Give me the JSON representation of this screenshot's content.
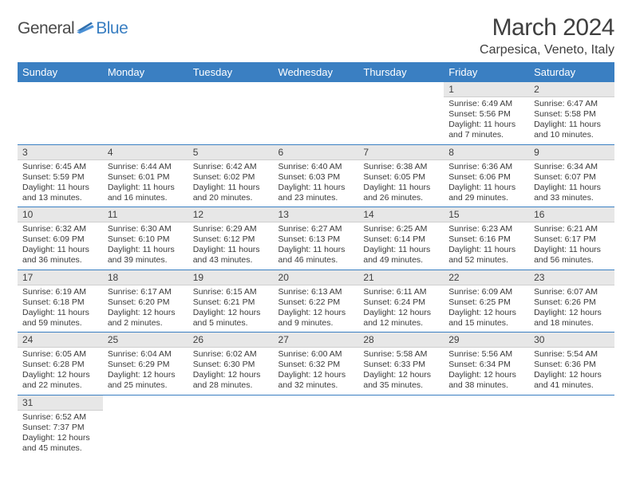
{
  "brand": {
    "general": "General",
    "blue": "Blue"
  },
  "title": "March 2024",
  "location": "Carpesica, Veneto, Italy",
  "colors": {
    "header_bg": "#3a7fc2",
    "header_fg": "#ffffff",
    "daynum_bg": "#e7e7e7",
    "row_divider": "#3a7fc2",
    "text": "#3a3a3a",
    "brand_blue": "#3a7fc2",
    "brand_gray": "#4a4a4a"
  },
  "weekdays": [
    "Sunday",
    "Monday",
    "Tuesday",
    "Wednesday",
    "Thursday",
    "Friday",
    "Saturday"
  ],
  "first_weekday_index": 5,
  "days": [
    {
      "n": 1,
      "sunrise": "6:49 AM",
      "sunset": "5:56 PM",
      "daylight": "11 hours and 7 minutes."
    },
    {
      "n": 2,
      "sunrise": "6:47 AM",
      "sunset": "5:58 PM",
      "daylight": "11 hours and 10 minutes."
    },
    {
      "n": 3,
      "sunrise": "6:45 AM",
      "sunset": "5:59 PM",
      "daylight": "11 hours and 13 minutes."
    },
    {
      "n": 4,
      "sunrise": "6:44 AM",
      "sunset": "6:01 PM",
      "daylight": "11 hours and 16 minutes."
    },
    {
      "n": 5,
      "sunrise": "6:42 AM",
      "sunset": "6:02 PM",
      "daylight": "11 hours and 20 minutes."
    },
    {
      "n": 6,
      "sunrise": "6:40 AM",
      "sunset": "6:03 PM",
      "daylight": "11 hours and 23 minutes."
    },
    {
      "n": 7,
      "sunrise": "6:38 AM",
      "sunset": "6:05 PM",
      "daylight": "11 hours and 26 minutes."
    },
    {
      "n": 8,
      "sunrise": "6:36 AM",
      "sunset": "6:06 PM",
      "daylight": "11 hours and 29 minutes."
    },
    {
      "n": 9,
      "sunrise": "6:34 AM",
      "sunset": "6:07 PM",
      "daylight": "11 hours and 33 minutes."
    },
    {
      "n": 10,
      "sunrise": "6:32 AM",
      "sunset": "6:09 PM",
      "daylight": "11 hours and 36 minutes."
    },
    {
      "n": 11,
      "sunrise": "6:30 AM",
      "sunset": "6:10 PM",
      "daylight": "11 hours and 39 minutes."
    },
    {
      "n": 12,
      "sunrise": "6:29 AM",
      "sunset": "6:12 PM",
      "daylight": "11 hours and 43 minutes."
    },
    {
      "n": 13,
      "sunrise": "6:27 AM",
      "sunset": "6:13 PM",
      "daylight": "11 hours and 46 minutes."
    },
    {
      "n": 14,
      "sunrise": "6:25 AM",
      "sunset": "6:14 PM",
      "daylight": "11 hours and 49 minutes."
    },
    {
      "n": 15,
      "sunrise": "6:23 AM",
      "sunset": "6:16 PM",
      "daylight": "11 hours and 52 minutes."
    },
    {
      "n": 16,
      "sunrise": "6:21 AM",
      "sunset": "6:17 PM",
      "daylight": "11 hours and 56 minutes."
    },
    {
      "n": 17,
      "sunrise": "6:19 AM",
      "sunset": "6:18 PM",
      "daylight": "11 hours and 59 minutes."
    },
    {
      "n": 18,
      "sunrise": "6:17 AM",
      "sunset": "6:20 PM",
      "daylight": "12 hours and 2 minutes."
    },
    {
      "n": 19,
      "sunrise": "6:15 AM",
      "sunset": "6:21 PM",
      "daylight": "12 hours and 5 minutes."
    },
    {
      "n": 20,
      "sunrise": "6:13 AM",
      "sunset": "6:22 PM",
      "daylight": "12 hours and 9 minutes."
    },
    {
      "n": 21,
      "sunrise": "6:11 AM",
      "sunset": "6:24 PM",
      "daylight": "12 hours and 12 minutes."
    },
    {
      "n": 22,
      "sunrise": "6:09 AM",
      "sunset": "6:25 PM",
      "daylight": "12 hours and 15 minutes."
    },
    {
      "n": 23,
      "sunrise": "6:07 AM",
      "sunset": "6:26 PM",
      "daylight": "12 hours and 18 minutes."
    },
    {
      "n": 24,
      "sunrise": "6:05 AM",
      "sunset": "6:28 PM",
      "daylight": "12 hours and 22 minutes."
    },
    {
      "n": 25,
      "sunrise": "6:04 AM",
      "sunset": "6:29 PM",
      "daylight": "12 hours and 25 minutes."
    },
    {
      "n": 26,
      "sunrise": "6:02 AM",
      "sunset": "6:30 PM",
      "daylight": "12 hours and 28 minutes."
    },
    {
      "n": 27,
      "sunrise": "6:00 AM",
      "sunset": "6:32 PM",
      "daylight": "12 hours and 32 minutes."
    },
    {
      "n": 28,
      "sunrise": "5:58 AM",
      "sunset": "6:33 PM",
      "daylight": "12 hours and 35 minutes."
    },
    {
      "n": 29,
      "sunrise": "5:56 AM",
      "sunset": "6:34 PM",
      "daylight": "12 hours and 38 minutes."
    },
    {
      "n": 30,
      "sunrise": "5:54 AM",
      "sunset": "6:36 PM",
      "daylight": "12 hours and 41 minutes."
    },
    {
      "n": 31,
      "sunrise": "6:52 AM",
      "sunset": "7:37 PM",
      "daylight": "12 hours and 45 minutes."
    }
  ],
  "labels": {
    "sunrise": "Sunrise:",
    "sunset": "Sunset:",
    "daylight": "Daylight:"
  }
}
